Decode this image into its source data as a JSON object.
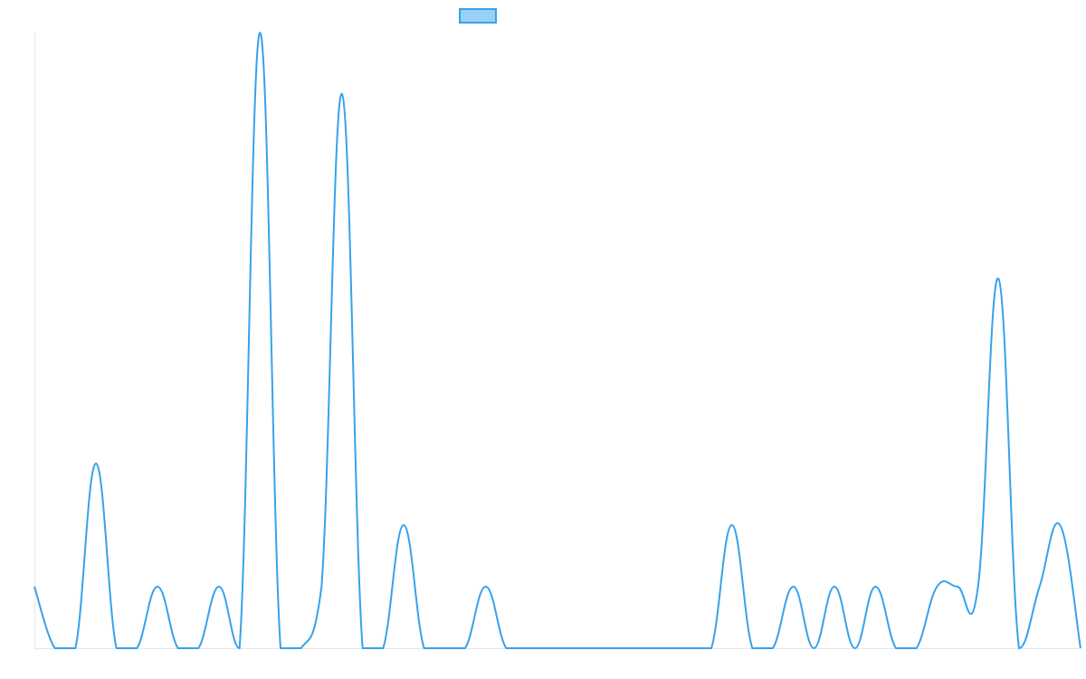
{
  "chart_data": {
    "type": "line",
    "title": "",
    "xlabel": "",
    "ylabel": "",
    "x": [
      0,
      1,
      2,
      3,
      4,
      5,
      6,
      7,
      8,
      9,
      10,
      11,
      12,
      13,
      14,
      15,
      16,
      17,
      18,
      19,
      20,
      21,
      22,
      23,
      24,
      25,
      26,
      27,
      28,
      29,
      30,
      31,
      32,
      33,
      34,
      35,
      36,
      37,
      38,
      39,
      40,
      41,
      42,
      43,
      44,
      45,
      46,
      47,
      48,
      49,
      50,
      51
    ],
    "series": [
      {
        "name": "",
        "color": "#36a2eb",
        "fill_color": "#9ad0f5",
        "values": [
          1,
          0,
          0,
          3,
          0,
          0,
          1,
          0,
          0,
          1,
          0,
          10,
          0,
          0,
          1,
          9,
          0,
          0,
          2,
          0,
          0,
          0,
          1,
          0,
          0,
          0,
          0,
          0,
          0,
          0,
          0,
          0,
          0,
          0,
          2,
          0,
          0,
          1,
          0,
          1,
          0,
          1,
          0,
          0,
          1,
          1,
          1,
          6,
          0,
          1,
          2,
          0
        ]
      }
    ],
    "ylim": [
      0,
      10
    ],
    "grid": false,
    "legend": "top-center",
    "tension": 0.4
  }
}
